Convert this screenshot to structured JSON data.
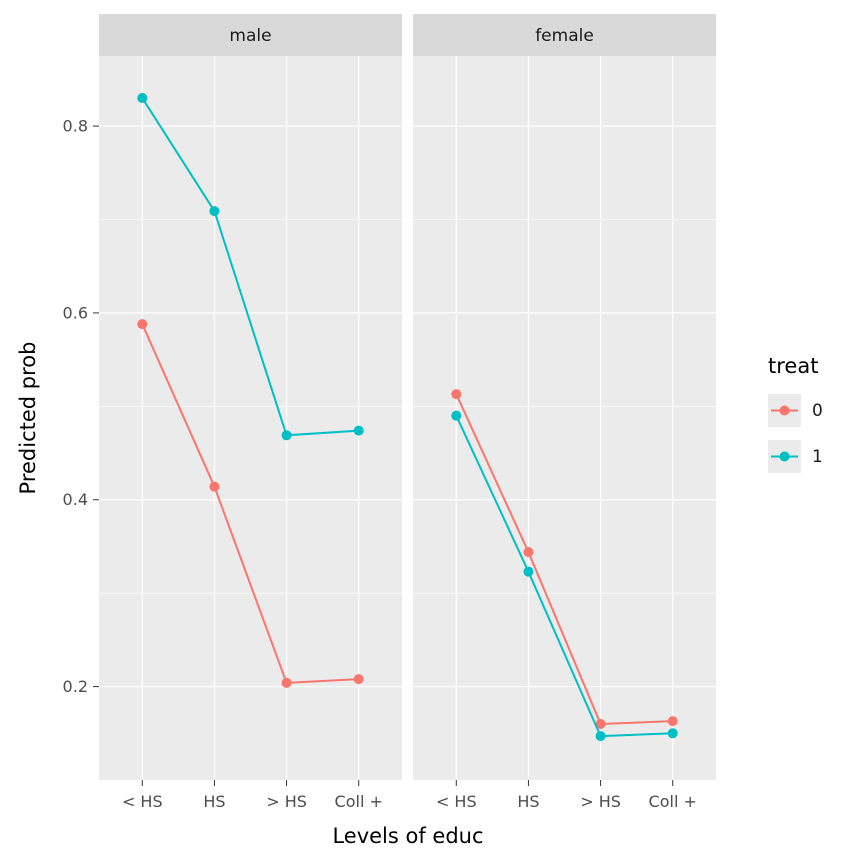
{
  "chart_data": {
    "type": "line",
    "title": "",
    "xlabel": "Levels of educ",
    "ylabel": "Predicted prob",
    "categories": [
      "< HS",
      "HS",
      "> HS",
      "Coll +"
    ],
    "y_ticks": [
      0.2,
      0.4,
      0.6,
      0.8
    ],
    "ylim": [
      0.1,
      0.875
    ],
    "grid": true,
    "facets": [
      {
        "label": "male",
        "series": [
          {
            "name": "0",
            "color": "#F8766D",
            "values": [
              0.588,
              0.414,
              0.204,
              0.208
            ]
          },
          {
            "name": "1",
            "color": "#00BFC4",
            "values": [
              0.83,
              0.709,
              0.469,
              0.474
            ]
          }
        ]
      },
      {
        "label": "female",
        "series": [
          {
            "name": "0",
            "color": "#F8766D",
            "values": [
              0.513,
              0.344,
              0.16,
              0.163
            ]
          },
          {
            "name": "1",
            "color": "#00BFC4",
            "values": [
              0.49,
              0.323,
              0.147,
              0.15
            ]
          }
        ]
      }
    ],
    "legend": {
      "title": "treat",
      "position": "right",
      "entries": [
        {
          "label": "0",
          "color": "#F8766D"
        },
        {
          "label": "1",
          "color": "#00BFC4"
        }
      ]
    },
    "style": {
      "panel_bg": "#EBEBEB",
      "strip_bg": "#D9D9D9",
      "grid_color": "#FFFFFF",
      "tick_color": "#333333",
      "tick_label_color": "#4D4D4D",
      "strip_text_color": "#1A1A1A",
      "axis_title_color": "#000000",
      "legend_key_bg": "#EBEBEB"
    }
  }
}
